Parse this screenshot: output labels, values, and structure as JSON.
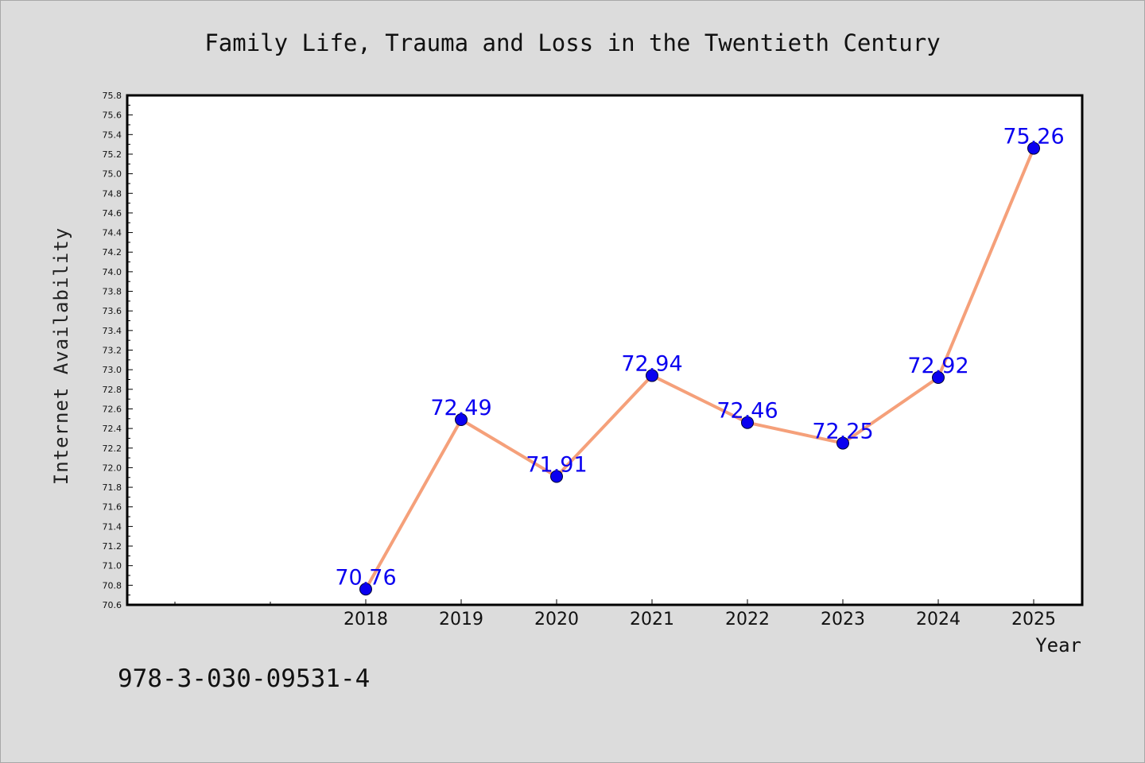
{
  "footer": {
    "isbn": "978-3-030-09531-4"
  },
  "chart_data": {
    "type": "line",
    "title": "Family Life, Trauma and Loss in the Twentieth Century",
    "xlabel": "Year",
    "ylabel": "Internet Availability",
    "x": [
      "2018",
      "2019",
      "2020",
      "2021",
      "2022",
      "2023",
      "2024",
      "2025"
    ],
    "series": [
      {
        "values": [
          70.76,
          72.49,
          71.91,
          72.94,
          72.46,
          72.25,
          72.92,
          75.26
        ]
      }
    ],
    "data_labels": [
      "70.76",
      "72.49",
      "71.91",
      "72.94",
      "72.46",
      "72.25",
      "72.92",
      "75.26"
    ],
    "ylim": [
      70.6,
      75.8
    ],
    "y_ticks": [
      "70.6",
      "70.8",
      "71.0",
      "71.2",
      "71.4",
      "71.6",
      "71.8",
      "72.0",
      "72.2",
      "72.4",
      "72.6",
      "72.8",
      "73.0",
      "73.2",
      "73.4",
      "73.6",
      "73.8",
      "74.0",
      "74.2",
      "74.4",
      "74.6",
      "74.8",
      "75.0",
      "75.2",
      "75.4",
      "75.6",
      "75.8"
    ],
    "x_categories_before_data": 2,
    "grid": false,
    "legend": "none",
    "colors": {
      "line": "#f5a07a",
      "marker": "#0a00f0",
      "marker_edge": "#000033",
      "data_label": "#0a00f0",
      "plot_background": "#ffffff",
      "page_background": "#dcdcdc"
    }
  }
}
